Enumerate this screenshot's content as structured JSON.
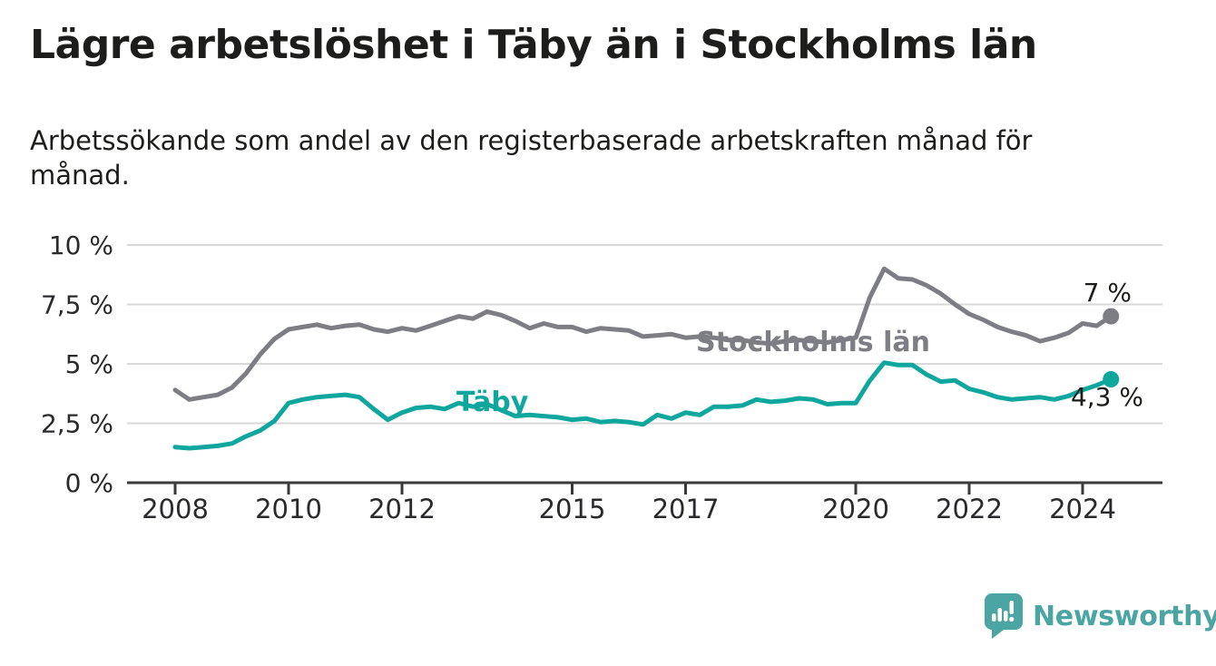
{
  "header": {
    "title": "Lägre arbetslöshet i Täby än i Stockholms län",
    "subtitle": "Arbetssökande som andel av den registerbaserade arbetskraften månad för månad.",
    "subtitle_lines": [
      "Arbetssökande som andel av den registerbaserade arbetskraften månad för",
      "månad."
    ]
  },
  "footer": {
    "brand": "Newsworthy",
    "logo_icon": "newsworthy-speech-bubble-bar-chart-icon",
    "brand_color": "#4ba5a2"
  },
  "colors": {
    "background": "#ffffff",
    "text": "#1d1d1b",
    "axis_line": "#3a3a3a",
    "gridline": "#d9d9d9",
    "stockholm_gray": "#7d7d84",
    "taby_teal": "#0fa79d"
  },
  "chart_data": {
    "type": "line",
    "title": "Lägre arbetslöshet i Täby än i Stockholms län",
    "x_unit": "year, quarterly samples (monthly in source)",
    "t_start": 2008,
    "t_step": 0.25,
    "x_axis": {
      "range": [
        2007.15,
        2025.4
      ],
      "ticks": [
        2008,
        2010,
        2012,
        2015,
        2017,
        2020,
        2022,
        2024
      ],
      "tick_labels": [
        "2008",
        "2010",
        "2012",
        "2015",
        "2017",
        "2020",
        "2022",
        "2024"
      ]
    },
    "y_axis": {
      "range": [
        0,
        10
      ],
      "grid": true,
      "ticks": [
        0,
        2.5,
        5,
        7.5,
        10
      ],
      "tick_labels": [
        "0 %",
        "2,5 %",
        "5 %",
        "7,5 %",
        "10 %"
      ]
    },
    "legend_position": "inline-labels-on-lines",
    "series": [
      {
        "name": "Stockholms län",
        "color": "#7d7d84",
        "end_label": "7 %",
        "end_value": 7.0,
        "values": [
          3.9,
          3.5,
          3.6,
          3.7,
          4.0,
          4.6,
          5.4,
          6.05,
          6.45,
          6.55,
          6.65,
          6.5,
          6.6,
          6.65,
          6.45,
          6.35,
          6.5,
          6.4,
          6.6,
          6.8,
          7.0,
          6.9,
          7.2,
          7.05,
          6.8,
          6.5,
          6.7,
          6.55,
          6.55,
          6.35,
          6.5,
          6.45,
          6.4,
          6.15,
          6.2,
          6.25,
          6.1,
          6.15,
          6.1,
          6.0,
          6.0,
          5.9,
          5.85,
          5.95,
          6.0,
          5.95,
          5.9,
          6.0,
          6.1,
          7.8,
          9.0,
          8.6,
          8.55,
          8.3,
          7.95,
          7.5,
          7.1,
          6.85,
          6.55,
          6.35,
          6.2,
          5.95,
          6.1,
          6.3,
          6.7,
          6.6,
          7.0
        ]
      },
      {
        "name": "Täby",
        "color": "#0fa79d",
        "end_label": "4,3 %",
        "end_value": 4.3,
        "values": [
          1.5,
          1.45,
          1.5,
          1.55,
          1.65,
          1.95,
          2.2,
          2.6,
          3.35,
          3.5,
          3.6,
          3.65,
          3.7,
          3.6,
          3.1,
          2.65,
          2.95,
          3.15,
          3.2,
          3.1,
          3.35,
          3.2,
          3.3,
          3.05,
          2.8,
          2.85,
          2.8,
          2.75,
          2.65,
          2.7,
          2.55,
          2.6,
          2.55,
          2.45,
          2.85,
          2.7,
          2.95,
          2.85,
          3.2,
          3.2,
          3.25,
          3.5,
          3.4,
          3.45,
          3.55,
          3.5,
          3.3,
          3.35,
          3.35,
          4.3,
          5.05,
          4.95,
          4.95,
          4.55,
          4.25,
          4.3,
          3.95,
          3.8,
          3.6,
          3.5,
          3.55,
          3.6,
          3.5,
          3.65,
          3.9,
          4.1,
          4.35
        ]
      }
    ]
  }
}
